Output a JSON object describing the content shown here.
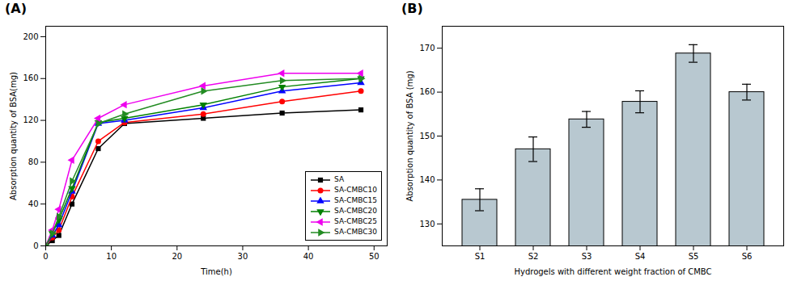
{
  "chart_data": [
    {
      "type": "line",
      "title": "(A)",
      "xlabel": "Time(h)",
      "ylabel": "Absorption quantity of BSA(mg)",
      "x": [
        0,
        1,
        2,
        4,
        8,
        12,
        24,
        36,
        48
      ],
      "xlim": [
        0,
        52
      ],
      "ylim": [
        0,
        210
      ],
      "xticks": [
        0,
        10,
        20,
        30,
        40,
        50
      ],
      "yticks": [
        0,
        40,
        80,
        120,
        160,
        200
      ],
      "legend": "lower right",
      "grid": false,
      "series": [
        {
          "name": "SA",
          "color": "#000000",
          "marker": "square",
          "values": [
            0,
            5,
            10,
            40,
            93,
            117,
            122,
            127,
            130
          ]
        },
        {
          "name": "SA-CMBC10",
          "color": "#ff0000",
          "marker": "circle",
          "values": [
            0,
            8,
            15,
            47,
            100,
            118,
            126,
            138,
            148
          ]
        },
        {
          "name": "SA-CMBC15",
          "color": "#0000ff",
          "marker": "triangle-up",
          "values": [
            0,
            10,
            20,
            52,
            117,
            120,
            132,
            148,
            156
          ]
        },
        {
          "name": "SA-CMBC20",
          "color": "#008000",
          "marker": "triangle-down",
          "values": [
            0,
            12,
            25,
            55,
            118,
            122,
            135,
            152,
            160
          ]
        },
        {
          "name": "SA-CMBC25",
          "color": "#ee00ee",
          "marker": "triangle-left",
          "values": [
            0,
            15,
            35,
            82,
            122,
            135,
            153,
            165,
            165
          ]
        },
        {
          "name": "SA-CMBC30",
          "color": "#228B22",
          "marker": "triangle-right",
          "values": [
            0,
            12,
            28,
            62,
            117,
            126,
            148,
            158,
            160
          ]
        }
      ]
    },
    {
      "type": "bar",
      "title": "(B)",
      "xlabel": "Hydrogels with different weight fraction of CMBC",
      "ylabel": "Absorption quantity of BSA (mg)",
      "categories": [
        "S1",
        "S2",
        "S3",
        "S4",
        "S5",
        "S6"
      ],
      "values": [
        135.5,
        147.0,
        153.8,
        157.8,
        168.8,
        160.0
      ],
      "errors": [
        2.5,
        2.8,
        1.8,
        2.5,
        2.0,
        1.8
      ],
      "color": "#b8c8d0",
      "ylim": [
        125,
        175
      ],
      "yticks": [
        130,
        140,
        150,
        160,
        170
      ],
      "grid": false
    }
  ]
}
